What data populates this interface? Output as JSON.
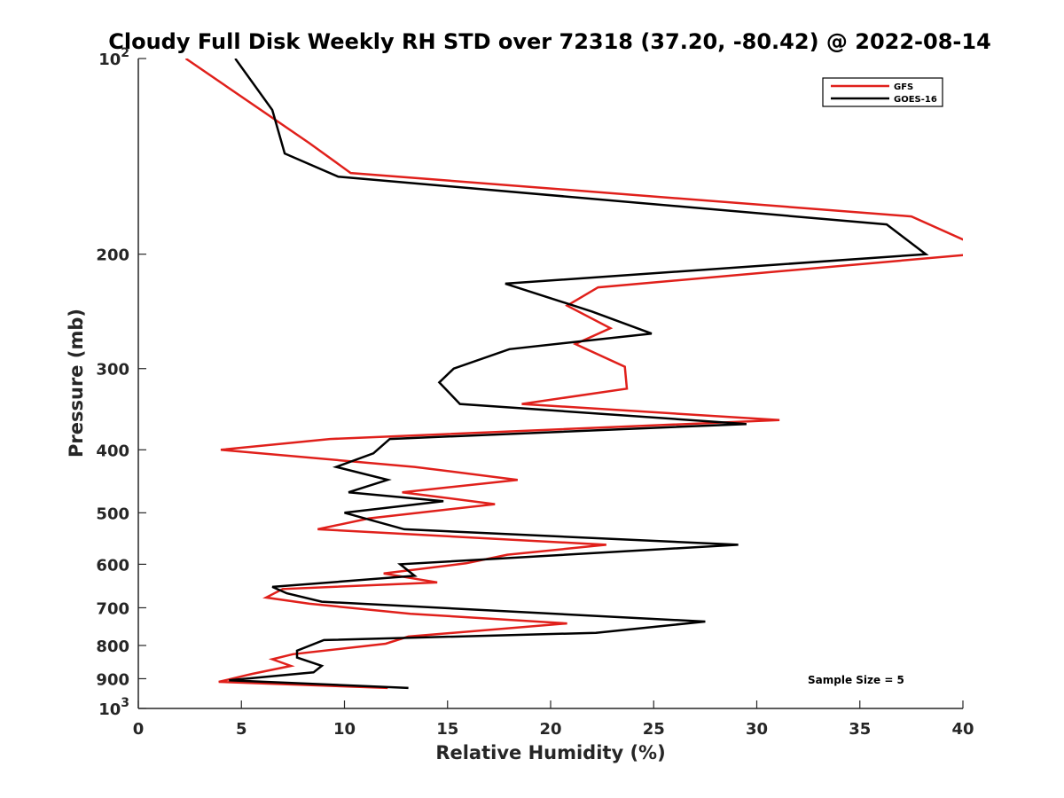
{
  "chart_data": {
    "type": "line",
    "title": "Cloudy Full Disk Weekly RH STD over 72318 (37.20, -80.42) @ 2022-08-14",
    "xlabel": "Relative Humidity (%)",
    "ylabel": "Pressure (mb)",
    "xlim": [
      0,
      40
    ],
    "ylim": [
      100,
      1000
    ],
    "yscale": "log",
    "y_reversed": true,
    "x_ticks": [
      0,
      5,
      10,
      15,
      20,
      25,
      30,
      35,
      40
    ],
    "x_tick_labels": [
      "0",
      "5",
      "10",
      "15",
      "20",
      "25",
      "30",
      "35",
      "40"
    ],
    "y_ticks": [
      {
        "value": 100,
        "base": "10",
        "exp": "2"
      },
      {
        "value": 200,
        "label": "200"
      },
      {
        "value": 300,
        "label": "300"
      },
      {
        "value": 400,
        "label": "400"
      },
      {
        "value": 500,
        "label": "500"
      },
      {
        "value": 600,
        "label": "600"
      },
      {
        "value": 700,
        "label": "700"
      },
      {
        "value": 800,
        "label": "800"
      },
      {
        "value": 900,
        "label": "900"
      },
      {
        "value": 1000,
        "base": "10",
        "exp": "3"
      }
    ],
    "legend": "top-right",
    "annotation": "Sample Size = 5",
    "series": [
      {
        "name": "GFS",
        "color": "#e0201b",
        "points": [
          [
            2.3,
            100
          ],
          [
            8.3,
            135
          ],
          [
            10.3,
            150
          ],
          [
            37.5,
            175
          ],
          [
            40.5,
            193
          ],
          [
            40.5,
            200
          ],
          [
            22.3,
            225
          ],
          [
            20.8,
            240
          ],
          [
            22.9,
            260
          ],
          [
            21.2,
            275
          ],
          [
            23.6,
            298
          ],
          [
            23.7,
            322
          ],
          [
            18.6,
            340
          ],
          [
            31.1,
            360
          ],
          [
            9.3,
            385
          ],
          [
            4.0,
            400
          ],
          [
            13.4,
            425
          ],
          [
            18.4,
            445
          ],
          [
            12.8,
            465
          ],
          [
            17.3,
            485
          ],
          [
            11.2,
            510
          ],
          [
            8.7,
            530
          ],
          [
            22.7,
            560
          ],
          [
            17.9,
            580
          ],
          [
            15.9,
            598
          ],
          [
            11.9,
            620
          ],
          [
            14.5,
            640
          ],
          [
            7.0,
            655
          ],
          [
            6.2,
            675
          ],
          [
            8.3,
            690
          ],
          [
            13.2,
            715
          ],
          [
            20.8,
            740
          ],
          [
            13.1,
            775
          ],
          [
            12.0,
            795
          ],
          [
            7.5,
            825
          ],
          [
            6.5,
            840
          ],
          [
            7.4,
            860
          ],
          [
            5.5,
            885
          ],
          [
            3.9,
            910
          ],
          [
            12.1,
            930
          ]
        ]
      },
      {
        "name": "GOES-16",
        "color": "#000000",
        "points": [
          [
            4.7,
            100
          ],
          [
            6.5,
            120
          ],
          [
            7.1,
            140
          ],
          [
            9.7,
            152
          ],
          [
            36.3,
            180
          ],
          [
            38.2,
            200
          ],
          [
            17.8,
            222
          ],
          [
            22.0,
            245
          ],
          [
            24.9,
            265
          ],
          [
            18.0,
            280
          ],
          [
            15.3,
            300
          ],
          [
            14.6,
            315
          ],
          [
            15.6,
            340
          ],
          [
            29.5,
            365
          ],
          [
            12.2,
            385
          ],
          [
            11.4,
            405
          ],
          [
            9.6,
            425
          ],
          [
            12.1,
            445
          ],
          [
            10.2,
            465
          ],
          [
            14.8,
            480
          ],
          [
            10.0,
            500
          ],
          [
            12.9,
            530
          ],
          [
            29.1,
            560
          ],
          [
            12.7,
            600
          ],
          [
            13.4,
            625
          ],
          [
            6.5,
            650
          ],
          [
            7.2,
            665
          ],
          [
            8.9,
            685
          ],
          [
            27.5,
            735
          ],
          [
            22.2,
            765
          ],
          [
            9.0,
            785
          ],
          [
            7.7,
            815
          ],
          [
            7.7,
            835
          ],
          [
            8.9,
            860
          ],
          [
            8.5,
            880
          ],
          [
            4.4,
            905
          ],
          [
            13.1,
            930
          ]
        ]
      }
    ]
  }
}
